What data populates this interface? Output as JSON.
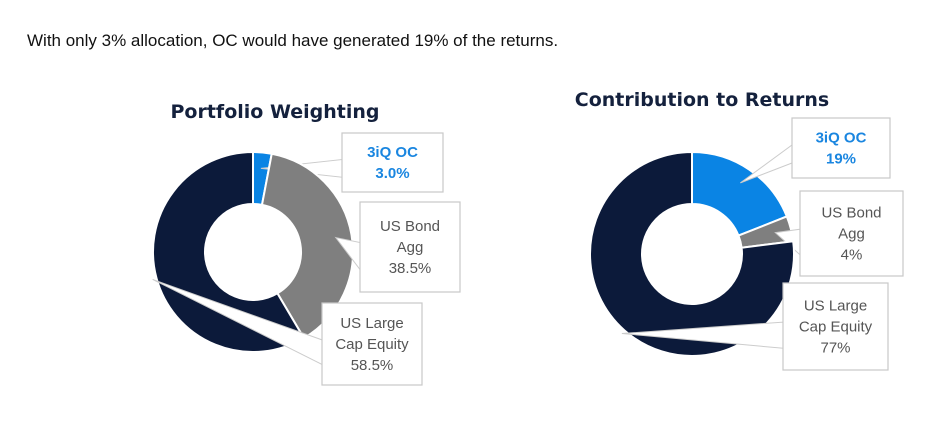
{
  "headline": "With only 3% allocation, OC would have generated 19% of the returns.",
  "colors": {
    "oc": "#0a84e4",
    "bond": "#7f7f7f",
    "equity": "#0c1a3a"
  },
  "chart_data": [
    {
      "type": "pie",
      "title": "Portfolio Weighting",
      "slices": [
        {
          "label": "3iQ OC",
          "value": 3.0,
          "display": "3.0%"
        },
        {
          "label": "US Bond Agg",
          "value": 38.5,
          "display": "38.5%"
        },
        {
          "label": "US Large Cap Equity",
          "value": 58.5,
          "display": "58.5%"
        }
      ]
    },
    {
      "type": "pie",
      "title": "Contribution to Returns",
      "slices": [
        {
          "label": "3iQ OC",
          "value": 19,
          "display": "19%"
        },
        {
          "label": "US Bond Agg",
          "value": 4,
          "display": "4%"
        },
        {
          "label": "US Large Cap Equity",
          "value": 77,
          "display": "77%"
        }
      ]
    }
  ]
}
